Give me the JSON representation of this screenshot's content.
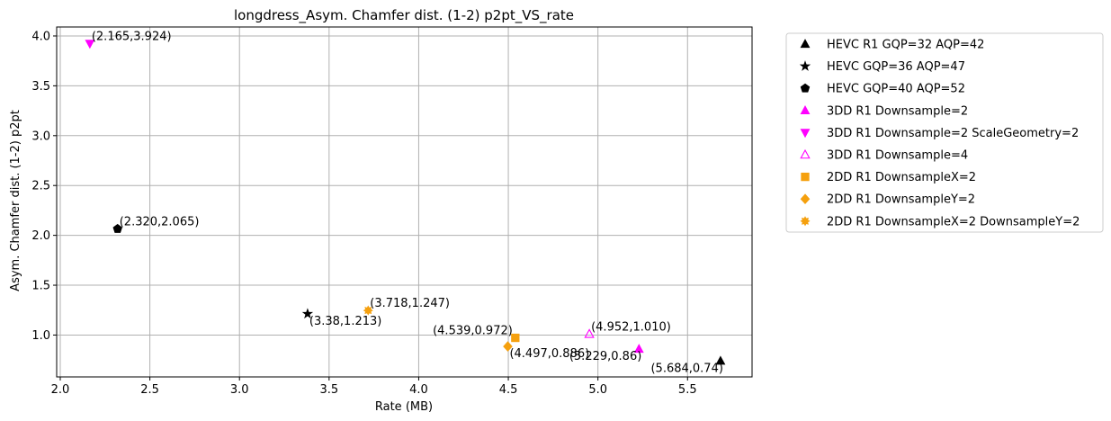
{
  "chart_data": {
    "type": "scatter",
    "title": "longdress_Asym. Chamfer dist. (1-2) p2pt_VS_rate",
    "xlabel": "Rate (MB)",
    "ylabel": "Asym. Chamfer dist. (1-2) p2pt",
    "xlim": [
      1.98,
      5.86
    ],
    "ylim": [
      0.58,
      4.09
    ],
    "xticks": [
      2.0,
      2.5,
      3.0,
      3.5,
      4.0,
      4.5,
      5.0,
      5.5
    ],
    "xtick_labels": [
      "2.0",
      "2.5",
      "3.0",
      "3.5",
      "4.0",
      "4.5",
      "5.0",
      "5.5"
    ],
    "yticks": [
      1.0,
      1.5,
      2.0,
      2.5,
      3.0,
      3.5,
      4.0
    ],
    "ytick_labels": [
      "1.0",
      "1.5",
      "2.0",
      "2.5",
      "3.0",
      "3.5",
      "4.0"
    ],
    "grid": true,
    "legend_position": "outside-right-top",
    "series": [
      {
        "name": "HEVC R1 GQP=32 AQP=42",
        "marker": "triangle-up",
        "color": "#000000",
        "filled": true,
        "x": [
          5.684
        ],
        "y": [
          0.74
        ],
        "label": "(5.684,0.74)",
        "label_pos": "below-left"
      },
      {
        "name": "HEVC GQP=36 AQP=47",
        "marker": "star",
        "color": "#000000",
        "filled": true,
        "x": [
          3.38
        ],
        "y": [
          1.213
        ],
        "label": "(3.38,1.213)",
        "label_pos": "below-right"
      },
      {
        "name": "HEVC GQP=40 AQP=52",
        "marker": "pentagon",
        "color": "#000000",
        "filled": true,
        "x": [
          2.32
        ],
        "y": [
          2.065
        ],
        "label": "(2.320,2.065)",
        "label_pos": "above-right"
      },
      {
        "name": "3DD R1 Downsample=2",
        "marker": "triangle-up",
        "color": "#ff00ff",
        "filled": true,
        "x": [
          5.229
        ],
        "y": [
          0.86
        ],
        "label": "(5.229,0.86)",
        "label_pos": "below-left"
      },
      {
        "name": "3DD R1 Downsample=2 ScaleGeometry=2",
        "marker": "triangle-down",
        "color": "#ff00ff",
        "filled": true,
        "x": [
          2.165
        ],
        "y": [
          3.924
        ],
        "label": "(2.165,3.924)",
        "label_pos": "above-right"
      },
      {
        "name": "3DD R1 Downsample=4",
        "marker": "triangle-up",
        "color": "#ff00ff",
        "filled": false,
        "x": [
          4.952
        ],
        "y": [
          1.01
        ],
        "label": "(4.952,1.010)",
        "label_pos": "above-right"
      },
      {
        "name": "2DD R1 DownsampleX=2",
        "marker": "square",
        "color": "#f5a00e",
        "filled": true,
        "x": [
          4.539
        ],
        "y": [
          0.972
        ],
        "label": "(4.539,0.972)",
        "label_pos": "above-left"
      },
      {
        "name": "2DD R1 DownsampleY=2",
        "marker": "diamond",
        "color": "#f5a00e",
        "filled": true,
        "x": [
          4.497
        ],
        "y": [
          0.886
        ],
        "label": "(4.497,0.886)",
        "label_pos": "below-right"
      },
      {
        "name": "2DD R1 DownsampleX=2 DownsampleY=2",
        "marker": "sun",
        "color": "#f5a00e",
        "filled": true,
        "x": [
          3.718
        ],
        "y": [
          1.247
        ],
        "label": "(3.718,1.247)",
        "label_pos": "above-right"
      }
    ]
  }
}
